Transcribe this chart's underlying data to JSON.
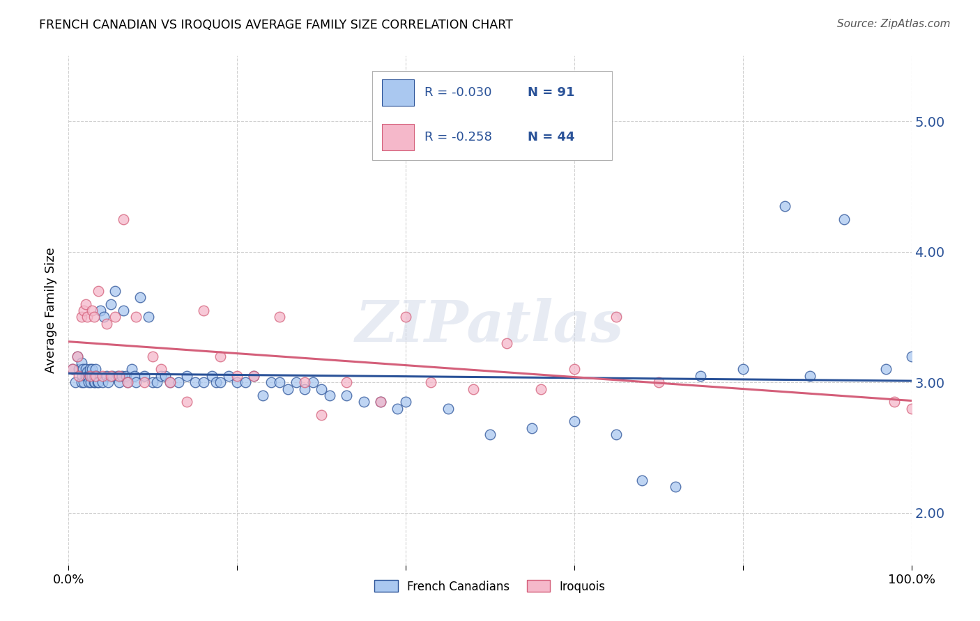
{
  "title": "FRENCH CANADIAN VS IROQUOIS AVERAGE FAMILY SIZE CORRELATION CHART",
  "source": "Source: ZipAtlas.com",
  "ylabel": "Average Family Size",
  "watermark": "ZIPatlas",
  "yticks": [
    2.0,
    3.0,
    4.0,
    5.0
  ],
  "xlim": [
    0.0,
    1.0
  ],
  "ylim": [
    1.6,
    5.5
  ],
  "blue_R": "-0.030",
  "blue_N": "91",
  "pink_R": "-0.258",
  "pink_N": "44",
  "blue_color": "#aac8f0",
  "pink_color": "#f5b8ca",
  "blue_line_color": "#2a5298",
  "pink_line_color": "#d45f7a",
  "legend_label_blue": "French Canadians",
  "legend_label_pink": "Iroquois",
  "blue_x": [
    0.005,
    0.008,
    0.01,
    0.012,
    0.015,
    0.015,
    0.016,
    0.017,
    0.018,
    0.02,
    0.02,
    0.022,
    0.023,
    0.024,
    0.025,
    0.025,
    0.026,
    0.027,
    0.028,
    0.028,
    0.03,
    0.03,
    0.031,
    0.032,
    0.033,
    0.034,
    0.035,
    0.038,
    0.04,
    0.042,
    0.045,
    0.047,
    0.05,
    0.052,
    0.055,
    0.058,
    0.06,
    0.063,
    0.065,
    0.068,
    0.07,
    0.075,
    0.078,
    0.08,
    0.085,
    0.09,
    0.095,
    0.1,
    0.105,
    0.11,
    0.115,
    0.12,
    0.13,
    0.14,
    0.15,
    0.16,
    0.17,
    0.175,
    0.18,
    0.19,
    0.2,
    0.21,
    0.22,
    0.23,
    0.24,
    0.25,
    0.26,
    0.27,
    0.28,
    0.29,
    0.3,
    0.31,
    0.33,
    0.35,
    0.37,
    0.39,
    0.4,
    0.45,
    0.5,
    0.55,
    0.6,
    0.65,
    0.68,
    0.72,
    0.75,
    0.8,
    0.85,
    0.88,
    0.92,
    0.97,
    1.0
  ],
  "blue_y": [
    3.1,
    3.0,
    3.2,
    3.1,
    3.0,
    3.15,
    3.05,
    3.1,
    3.0,
    3.1,
    3.05,
    3.08,
    3.05,
    3.0,
    3.05,
    3.1,
    3.0,
    3.05,
    3.05,
    3.1,
    3.05,
    3.0,
    3.0,
    3.1,
    3.05,
    3.0,
    3.0,
    3.55,
    3.0,
    3.5,
    3.05,
    3.0,
    3.6,
    3.05,
    3.7,
    3.05,
    3.0,
    3.05,
    3.55,
    3.05,
    3.0,
    3.1,
    3.05,
    3.0,
    3.65,
    3.05,
    3.5,
    3.0,
    3.0,
    3.05,
    3.05,
    3.0,
    3.0,
    3.05,
    3.0,
    3.0,
    3.05,
    3.0,
    3.0,
    3.05,
    3.0,
    3.0,
    3.05,
    2.9,
    3.0,
    3.0,
    2.95,
    3.0,
    2.95,
    3.0,
    2.95,
    2.9,
    2.9,
    2.85,
    2.85,
    2.8,
    2.85,
    2.8,
    2.6,
    2.65,
    2.7,
    2.6,
    2.25,
    2.2,
    3.05,
    3.1,
    4.35,
    3.05,
    4.25,
    3.1,
    3.2
  ],
  "pink_x": [
    0.005,
    0.01,
    0.012,
    0.015,
    0.018,
    0.02,
    0.022,
    0.025,
    0.028,
    0.03,
    0.032,
    0.035,
    0.04,
    0.045,
    0.05,
    0.055,
    0.06,
    0.065,
    0.07,
    0.08,
    0.09,
    0.1,
    0.11,
    0.12,
    0.14,
    0.16,
    0.18,
    0.2,
    0.22,
    0.25,
    0.28,
    0.3,
    0.33,
    0.37,
    0.4,
    0.43,
    0.48,
    0.52,
    0.56,
    0.6,
    0.65,
    0.7,
    0.98,
    1.0
  ],
  "pink_y": [
    3.1,
    3.2,
    3.05,
    3.5,
    3.55,
    3.6,
    3.5,
    3.05,
    3.55,
    3.5,
    3.05,
    3.7,
    3.05,
    3.45,
    3.05,
    3.5,
    3.05,
    4.25,
    3.0,
    3.5,
    3.0,
    3.2,
    3.1,
    3.0,
    2.85,
    3.55,
    3.2,
    3.05,
    3.05,
    3.5,
    3.0,
    2.75,
    3.0,
    2.85,
    3.5,
    3.0,
    2.95,
    3.3,
    2.95,
    3.1,
    3.5,
    3.0,
    2.85,
    2.8
  ]
}
